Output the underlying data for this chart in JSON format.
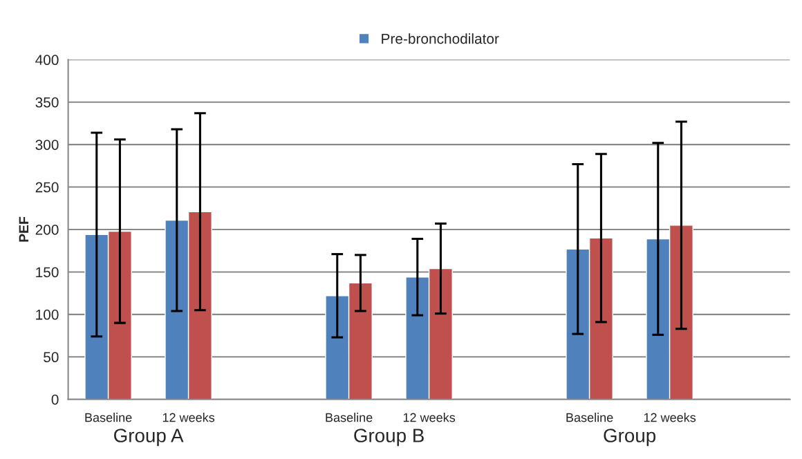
{
  "chart_data": {
    "type": "bar",
    "categories": [
      "Baseline",
      "12 weeks",
      null,
      "Baseline",
      "12 weeks",
      null,
      "Baseline",
      "12 weeks",
      null
    ],
    "series": [
      {
        "name": "Pre-bronchodilator",
        "color": "#4f81bd",
        "values": [
          194,
          211,
          null,
          122,
          144,
          null,
          177,
          189,
          null
        ],
        "errors": [
          120,
          107,
          null,
          49,
          45,
          null,
          100,
          113,
          null
        ]
      },
      {
        "color": "#c0504d",
        "values": [
          198,
          221,
          null,
          137,
          154,
          null,
          190,
          205,
          null
        ],
        "errors": [
          108,
          116,
          null,
          33,
          53,
          null,
          99,
          122,
          null
        ]
      }
    ],
    "ylabel": "PEF",
    "ylim": [
      0,
      400
    ],
    "yticks": [
      0,
      50,
      100,
      150,
      200,
      250,
      300,
      350,
      400
    ],
    "annotations": [
      "Group A",
      "Group B",
      "Group"
    ],
    "grid": "y",
    "legend": "top"
  }
}
